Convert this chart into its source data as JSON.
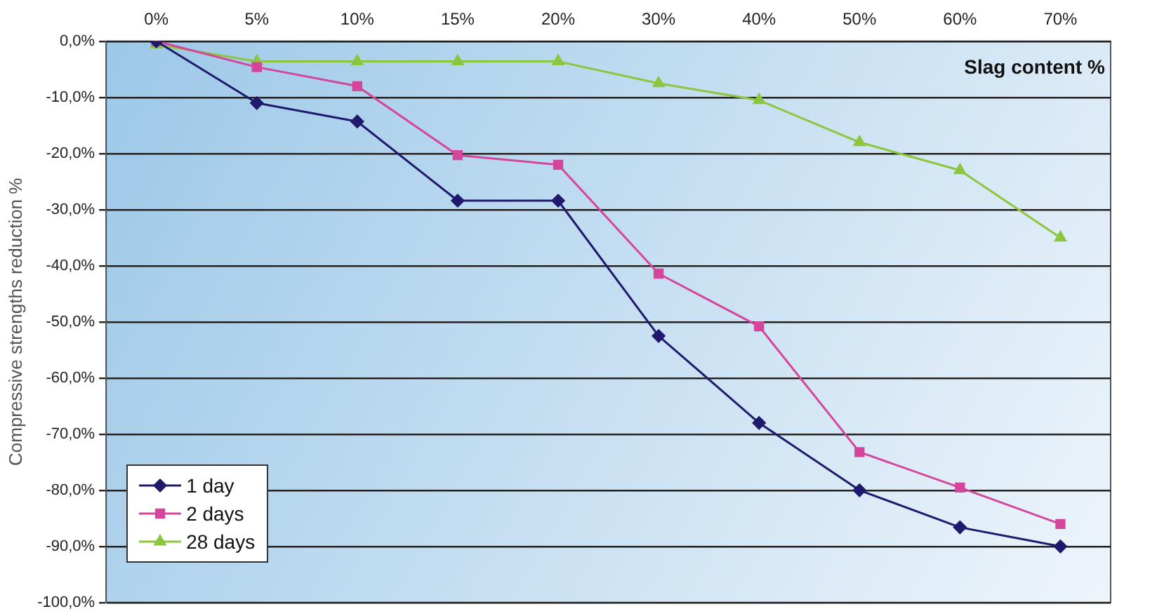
{
  "chart_data": {
    "type": "line",
    "xlabel": "Slag content %",
    "ylabel": "Compressive strengths reduction %",
    "categories": [
      "0%",
      "5%",
      "10%",
      "15%",
      "20%",
      "30%",
      "40%",
      "50%",
      "60%",
      "70%"
    ],
    "series": [
      {
        "name": "1 day",
        "color": "#1f1a6e",
        "marker": "diamond",
        "values": [
          0,
          -11,
          -14.3,
          -28.4,
          -28.4,
          -52.5,
          -68,
          -80,
          -86.6,
          -90
        ]
      },
      {
        "name": "2 days",
        "color": "#d4459c",
        "marker": "square",
        "values": [
          0,
          -4.6,
          -8,
          -20.3,
          -22,
          -41.4,
          -50.8,
          -73.2,
          -79.5,
          -86
        ]
      },
      {
        "name": "28 days",
        "color": "#8cc63f",
        "marker": "triangle",
        "values": [
          -0.6,
          -3.6,
          -3.6,
          -3.6,
          -3.6,
          -7.5,
          -10.5,
          -18,
          -23,
          -35
        ]
      }
    ],
    "ylim": [
      -100,
      0
    ],
    "yticks": [
      {
        "value": 0,
        "label": "0,0%"
      },
      {
        "value": -10,
        "label": "-10,0%"
      },
      {
        "value": -20,
        "label": "-20,0%"
      },
      {
        "value": -30,
        "label": "-30,0%"
      },
      {
        "value": -40,
        "label": "-40,0%"
      },
      {
        "value": -50,
        "label": "-50,0%"
      },
      {
        "value": -60,
        "label": "-60,0%"
      },
      {
        "value": -70,
        "label": "-70,0%"
      },
      {
        "value": -80,
        "label": "-80,0%"
      },
      {
        "value": -90,
        "label": "-90,0%"
      },
      {
        "value": -100,
        "label": "-100,0%"
      }
    ],
    "grid": "y",
    "legend": "bottom left",
    "line_style": "solid"
  }
}
